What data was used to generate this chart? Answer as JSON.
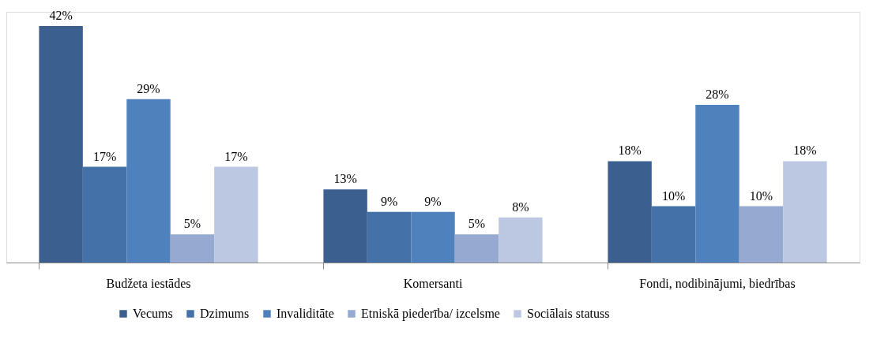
{
  "chart_data": {
    "type": "bar",
    "categories": [
      "Budžeta iestādes",
      "Komersanti",
      "Fondi, nodibinājumi, biedrības"
    ],
    "series": [
      {
        "name": "Vecums",
        "color": "#3b5f8e",
        "values": [
          42,
          13,
          18
        ],
        "value_labels": [
          "42%",
          "13%",
          "18%"
        ]
      },
      {
        "name": "Dzimums",
        "color": "#4472a8",
        "values": [
          17,
          9,
          10
        ],
        "value_labels": [
          "17%",
          "9%",
          "10%"
        ]
      },
      {
        "name": "Invaliditāte",
        "color": "#4f81bd",
        "values": [
          29,
          9,
          28
        ],
        "value_labels": [
          "29%",
          "9%",
          "28%"
        ]
      },
      {
        "name": "Etniskā piederība/ izcelsme",
        "color": "#95a9d1",
        "values": [
          5,
          5,
          10
        ],
        "value_labels": [
          "5%",
          "5%",
          "10%"
        ]
      },
      {
        "name": "Sociālais statuss",
        "color": "#bcc8e2",
        "values": [
          17,
          8,
          18
        ],
        "value_labels": [
          "17%",
          "8%",
          "18%"
        ]
      }
    ],
    "legend": "bottom"
  }
}
